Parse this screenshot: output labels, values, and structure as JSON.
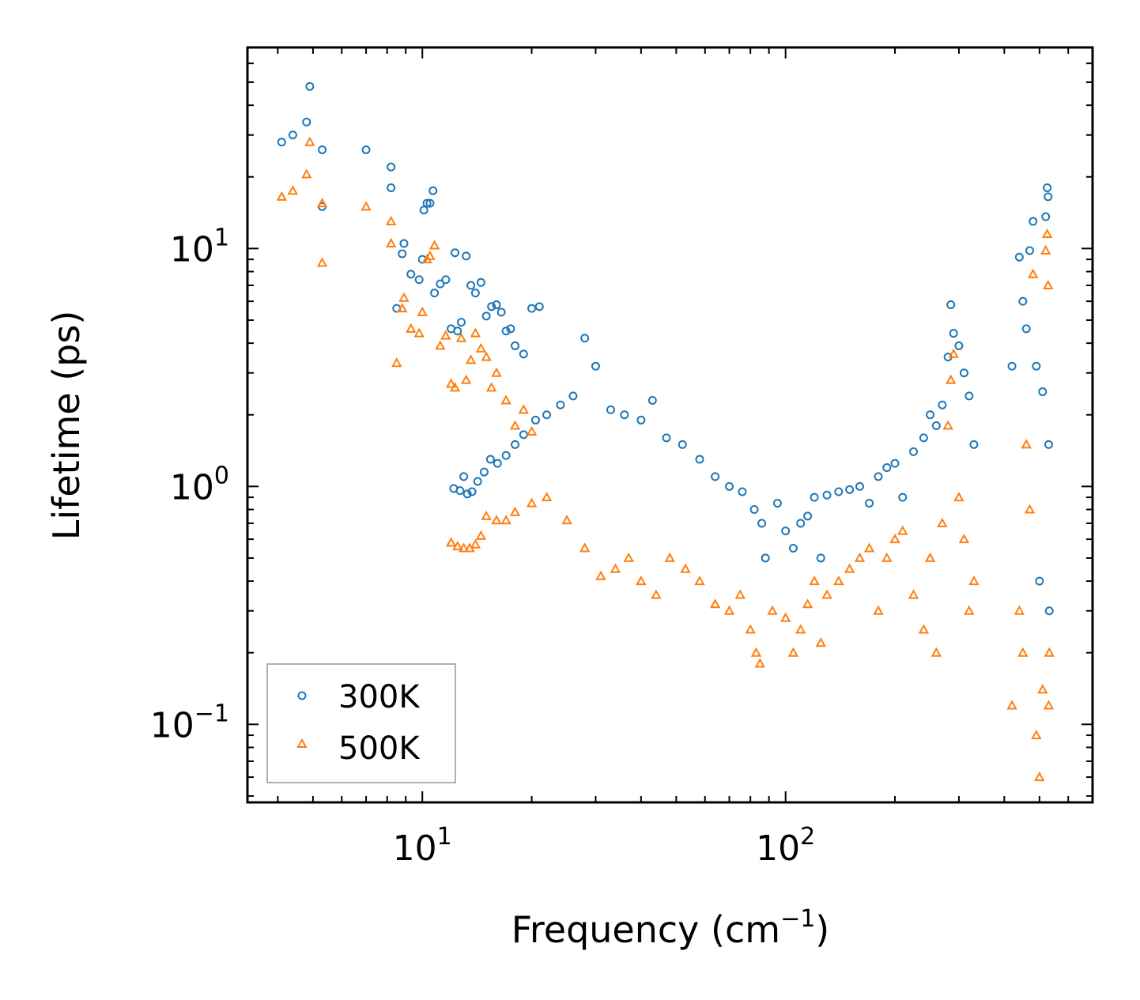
{
  "chart_data": {
    "type": "scatter",
    "title": "",
    "xlabel": "Frequency (cm",
    "xlabel_sup": "−1",
    "xlabel_end": ")",
    "ylabel": "Lifetime (ps)",
    "xscale": "log",
    "yscale": "log",
    "xlim": [
      3.3,
      700
    ],
    "ylim": [
      0.047,
      70
    ],
    "x_ticks": [
      {
        "value": 10,
        "base": "10",
        "exp": "1"
      },
      {
        "value": 100,
        "base": "10",
        "exp": "2"
      }
    ],
    "y_ticks": [
      {
        "value": 0.1,
        "base": "10",
        "exp": "−1"
      },
      {
        "value": 1,
        "base": "10",
        "exp": "0"
      },
      {
        "value": 10,
        "base": "10",
        "exp": "1"
      }
    ],
    "legend_position": "lower-left",
    "series": [
      {
        "name": "300K",
        "marker": "circle",
        "color": "#1f77b4",
        "points": [
          [
            4.1,
            28
          ],
          [
            4.4,
            30
          ],
          [
            4.8,
            34
          ],
          [
            4.9,
            48
          ],
          [
            5.3,
            26
          ],
          [
            5.3,
            15
          ],
          [
            7.0,
            26
          ],
          [
            8.2,
            22
          ],
          [
            8.2,
            18
          ],
          [
            8.5,
            5.6
          ],
          [
            8.8,
            9.5
          ],
          [
            8.9,
            10.5
          ],
          [
            9.3,
            7.8
          ],
          [
            9.8,
            7.4
          ],
          [
            10.0,
            9.0
          ],
          [
            10.1,
            14.5
          ],
          [
            10.3,
            15.5
          ],
          [
            10.5,
            15.5
          ],
          [
            10.7,
            17.5
          ],
          [
            10.8,
            6.5
          ],
          [
            11.2,
            7.1
          ],
          [
            11.6,
            7.4
          ],
          [
            12.0,
            4.6
          ],
          [
            12.3,
            9.6
          ],
          [
            12.5,
            4.5
          ],
          [
            12.8,
            4.9
          ],
          [
            13.2,
            9.3
          ],
          [
            13.6,
            7.0
          ],
          [
            14.0,
            6.5
          ],
          [
            14.5,
            7.2
          ],
          [
            15.0,
            5.2
          ],
          [
            15.5,
            5.7
          ],
          [
            16.0,
            5.8
          ],
          [
            16.5,
            5.4
          ],
          [
            17.0,
            4.5
          ],
          [
            17.5,
            4.6
          ],
          [
            18.0,
            3.9
          ],
          [
            19.0,
            3.6
          ],
          [
            20.0,
            5.6
          ],
          [
            21.0,
            5.7
          ],
          [
            12.2,
            0.98
          ],
          [
            12.7,
            0.96
          ],
          [
            13.0,
            1.1
          ],
          [
            13.3,
            0.93
          ],
          [
            13.7,
            0.95
          ],
          [
            14.2,
            1.05
          ],
          [
            14.8,
            1.15
          ],
          [
            15.4,
            1.3
          ],
          [
            16.1,
            1.25
          ],
          [
            17.0,
            1.35
          ],
          [
            18.0,
            1.5
          ],
          [
            19.0,
            1.65
          ],
          [
            20.5,
            1.9
          ],
          [
            22.0,
            2.0
          ],
          [
            24.0,
            2.2
          ],
          [
            26.0,
            2.4
          ],
          [
            28.0,
            4.2
          ],
          [
            30.0,
            3.2
          ],
          [
            33.0,
            2.1
          ],
          [
            36.0,
            2.0
          ],
          [
            40.0,
            1.9
          ],
          [
            43.0,
            2.3
          ],
          [
            47.0,
            1.6
          ],
          [
            52.0,
            1.5
          ],
          [
            58.0,
            1.3
          ],
          [
            64.0,
            1.1
          ],
          [
            70.0,
            1.0
          ],
          [
            76.0,
            0.95
          ],
          [
            82.0,
            0.8
          ],
          [
            86.0,
            0.7
          ],
          [
            88.0,
            0.5
          ],
          [
            95.0,
            0.85
          ],
          [
            100,
            0.65
          ],
          [
            105,
            0.55
          ],
          [
            110,
            0.7
          ],
          [
            115,
            0.75
          ],
          [
            120,
            0.9
          ],
          [
            125,
            0.5
          ],
          [
            130,
            0.92
          ],
          [
            140,
            0.95
          ],
          [
            150,
            0.97
          ],
          [
            160,
            1.0
          ],
          [
            170,
            0.85
          ],
          [
            180,
            1.1
          ],
          [
            190,
            1.2
          ],
          [
            200,
            1.25
          ],
          [
            210,
            0.9
          ],
          [
            225,
            1.4
          ],
          [
            240,
            1.6
          ],
          [
            250,
            2.0
          ],
          [
            260,
            1.8
          ],
          [
            270,
            2.2
          ],
          [
            280,
            3.5
          ],
          [
            285,
            5.8
          ],
          [
            290,
            4.4
          ],
          [
            300,
            3.9
          ],
          [
            310,
            3.0
          ],
          [
            320,
            2.4
          ],
          [
            330,
            1.5
          ],
          [
            420,
            3.2
          ],
          [
            440,
            9.2
          ],
          [
            450,
            6.0
          ],
          [
            460,
            4.6
          ],
          [
            470,
            9.8
          ],
          [
            480,
            13.0
          ],
          [
            490,
            3.2
          ],
          [
            500,
            0.4
          ],
          [
            510,
            2.5
          ],
          [
            520,
            13.6
          ],
          [
            525,
            18.0
          ],
          [
            528,
            16.5
          ],
          [
            530,
            1.5
          ],
          [
            532,
            0.3
          ]
        ]
      },
      {
        "name": "500K",
        "marker": "triangle",
        "color": "#ff7f0e",
        "points": [
          [
            4.1,
            16.5
          ],
          [
            4.4,
            17.5
          ],
          [
            4.8,
            20.5
          ],
          [
            4.9,
            28
          ],
          [
            5.3,
            15.5
          ],
          [
            5.3,
            8.7
          ],
          [
            7.0,
            15.0
          ],
          [
            8.2,
            13.0
          ],
          [
            8.2,
            10.5
          ],
          [
            8.5,
            3.3
          ],
          [
            8.8,
            5.6
          ],
          [
            8.9,
            6.2
          ],
          [
            9.3,
            4.6
          ],
          [
            9.8,
            4.4
          ],
          [
            10.0,
            5.4
          ],
          [
            10.3,
            9.0
          ],
          [
            10.5,
            9.3
          ],
          [
            10.8,
            10.3
          ],
          [
            11.2,
            3.9
          ],
          [
            11.6,
            4.3
          ],
          [
            12.0,
            2.7
          ],
          [
            12.3,
            2.6
          ],
          [
            12.8,
            4.2
          ],
          [
            13.2,
            2.8
          ],
          [
            13.6,
            3.4
          ],
          [
            14.0,
            4.4
          ],
          [
            14.5,
            3.8
          ],
          [
            15.0,
            3.5
          ],
          [
            15.5,
            2.6
          ],
          [
            16.0,
            3.0
          ],
          [
            17.0,
            2.3
          ],
          [
            18.0,
            1.8
          ],
          [
            19.0,
            2.1
          ],
          [
            20.0,
            1.7
          ],
          [
            12.0,
            0.58
          ],
          [
            12.5,
            0.56
          ],
          [
            13.0,
            0.55
          ],
          [
            13.5,
            0.55
          ],
          [
            14.0,
            0.57
          ],
          [
            14.5,
            0.62
          ],
          [
            15.0,
            0.75
          ],
          [
            16.0,
            0.72
          ],
          [
            17.0,
            0.72
          ],
          [
            18.0,
            0.78
          ],
          [
            20.0,
            0.85
          ],
          [
            22.0,
            0.9
          ],
          [
            25.0,
            0.72
          ],
          [
            28.0,
            0.55
          ],
          [
            31.0,
            0.42
          ],
          [
            34.0,
            0.45
          ],
          [
            37.0,
            0.5
          ],
          [
            40.0,
            0.4
          ],
          [
            44.0,
            0.35
          ],
          [
            48.0,
            0.5
          ],
          [
            53.0,
            0.45
          ],
          [
            58.0,
            0.4
          ],
          [
            64.0,
            0.32
          ],
          [
            70.0,
            0.3
          ],
          [
            75.0,
            0.35
          ],
          [
            80.0,
            0.25
          ],
          [
            83.0,
            0.2
          ],
          [
            85.0,
            0.18
          ],
          [
            92.0,
            0.3
          ],
          [
            100,
            0.28
          ],
          [
            105,
            0.2
          ],
          [
            110,
            0.25
          ],
          [
            115,
            0.32
          ],
          [
            120,
            0.4
          ],
          [
            125,
            0.22
          ],
          [
            130,
            0.35
          ],
          [
            140,
            0.4
          ],
          [
            150,
            0.45
          ],
          [
            160,
            0.5
          ],
          [
            170,
            0.55
          ],
          [
            180,
            0.3
          ],
          [
            190,
            0.5
          ],
          [
            200,
            0.6
          ],
          [
            210,
            0.65
          ],
          [
            225,
            0.35
          ],
          [
            240,
            0.25
          ],
          [
            250,
            0.5
          ],
          [
            260,
            0.2
          ],
          [
            270,
            0.7
          ],
          [
            280,
            1.8
          ],
          [
            285,
            2.8
          ],
          [
            290,
            3.6
          ],
          [
            300,
            0.9
          ],
          [
            310,
            0.6
          ],
          [
            320,
            0.3
          ],
          [
            330,
            0.4
          ],
          [
            420,
            0.12
          ],
          [
            440,
            0.3
          ],
          [
            450,
            0.2
          ],
          [
            460,
            1.5
          ],
          [
            470,
            0.8
          ],
          [
            480,
            7.8
          ],
          [
            490,
            0.09
          ],
          [
            500,
            0.06
          ],
          [
            510,
            0.14
          ],
          [
            520,
            9.8
          ],
          [
            525,
            11.5
          ],
          [
            528,
            7.0
          ],
          [
            530,
            0.12
          ],
          [
            532,
            0.2
          ]
        ]
      }
    ]
  }
}
